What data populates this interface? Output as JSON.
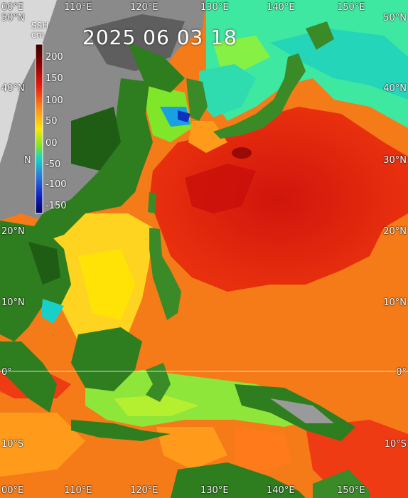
{
  "map": {
    "variable_label": "SSH",
    "unit_label": "cm",
    "timestamp": "2025 06 03 18",
    "colorbar": {
      "ticks": [
        "200",
        "150",
        "100",
        "50",
        "00",
        "-50",
        "-100",
        "-150"
      ],
      "colors_top_to_bottom": [
        "#3a0000",
        "#8b0000",
        "#e81c10",
        "#ff8c1a",
        "#ffe600",
        "#7fe62a",
        "#18d0c8",
        "#2b7bd9",
        "#1020c0",
        "#000060"
      ]
    },
    "lon_labels_top": [
      "00°E",
      "110°E",
      "120°E",
      "130°E",
      "140°E",
      "150°E"
    ],
    "lon_labels_bottom": [
      "00°E",
      "110°E",
      "120°E",
      "130°E",
      "140°E",
      "150°E"
    ],
    "lat_labels_left": [
      "50°N",
      "40°N",
      "N",
      "20°N",
      "10°N",
      "0°",
      "10°S"
    ],
    "lat_labels_right": [
      "50°N",
      "40°N",
      "30°N",
      "20°N",
      "10°N",
      "0°",
      "10°S"
    ],
    "colors": {
      "ocean_high": "#e8300e",
      "ocean_mid": "#ff8c1a",
      "ocean_low": "#ffe600",
      "ocean_cool": "#7fe62a",
      "ocean_cold": "#18d0c8",
      "land_green": "#2e7d1f",
      "land_mountain": "#8a8a8a",
      "equator_line": "#ffffff"
    }
  }
}
